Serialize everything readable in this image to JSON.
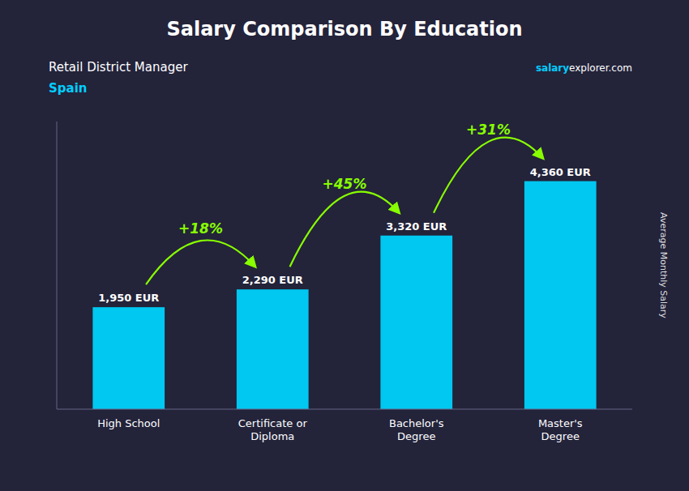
{
  "chart_data": {
    "type": "bar",
    "title": "Salary Comparison By Education",
    "subtitle": "Retail District Manager",
    "ylabel": "Average Monthly Salary",
    "categories": [
      "High School",
      "Certificate or\nDiploma",
      "Bachelor's\nDegree",
      "Master's\nDegree"
    ],
    "values": [
      1950,
      2290,
      3320,
      4360
    ],
    "value_labels": [
      "1,950 EUR",
      "2,290 EUR",
      "3,320 EUR",
      "4,360 EUR"
    ],
    "data_labels": true,
    "color": "#00c8f0",
    "ylim": [
      0,
      5500
    ],
    "tick_labels": "x",
    "grid": false,
    "annotations": {
      "country": "Spain",
      "source": [
        "salary",
        "explorer.com"
      ],
      "changes": [
        "+18%",
        "+45%",
        "+31%"
      ]
    }
  }
}
